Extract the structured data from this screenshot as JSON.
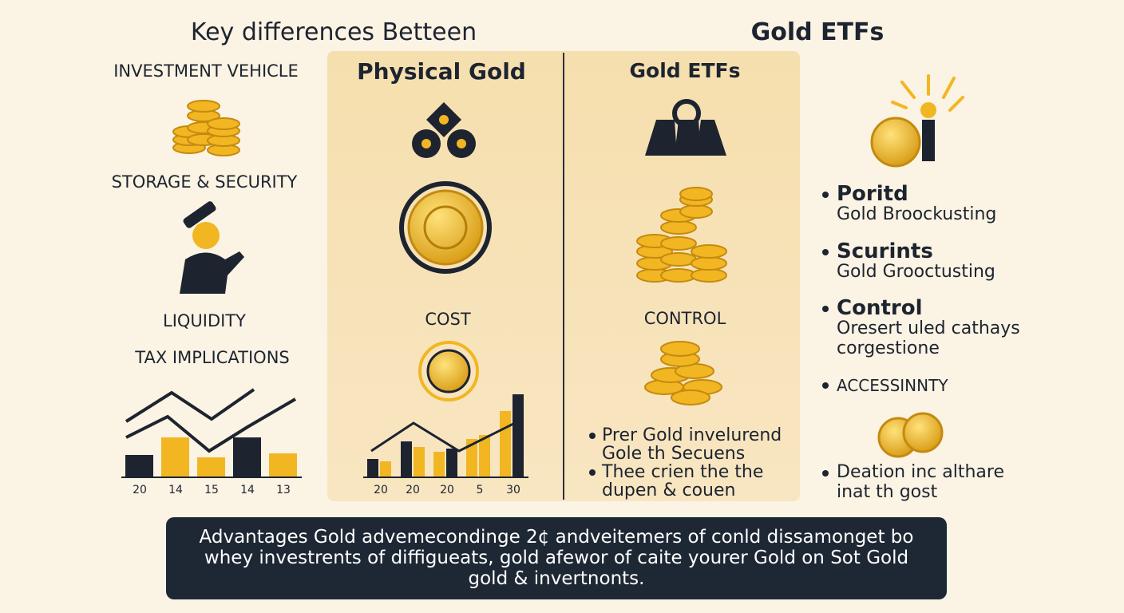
{
  "header": {
    "title_left": "Key differences Betteen",
    "title_right": "Gold ETFs"
  },
  "left": {
    "labels": [
      "INVESTMENT VEHICLE",
      "STORAGE & SECURITY",
      "LIQUIDITY",
      "TAX IMPLICATIONS"
    ],
    "chart_labels": [
      "20",
      "14",
      "15",
      "14",
      "13"
    ]
  },
  "physical": {
    "title": "Physical Gold",
    "label": "COST",
    "chart_labels": [
      "20",
      "20",
      "20",
      "5",
      "30"
    ]
  },
  "etfs": {
    "title": "Gold ETFs",
    "label": "CONTROL",
    "bullets": [
      [
        "Prer Gold invelurend",
        "Gole th Secuens"
      ],
      [
        "Thee crien the the",
        "dupen & couen"
      ]
    ]
  },
  "right": {
    "items": [
      {
        "title": "Poritd",
        "lines": [
          "Gold Broockusting"
        ]
      },
      {
        "title": "Scurints",
        "lines": [
          "Gold Grooctusting"
        ]
      },
      {
        "title": "Control",
        "lines": [
          "Oresert uled cathays",
          "corgestione"
        ]
      }
    ],
    "small_item": "ACCESSINNTY",
    "bottom": [
      "Deation inc althare",
      "inat th gost"
    ]
  },
  "footer": {
    "lines": [
      "Advantages Gold advemecondinge 2¢ andveitemers of conld dissamonget bo",
      "whey investrents of diffigueats, gold afewor of caite yourer Gold on Sot Gold",
      "gold & invertnonts."
    ]
  }
}
